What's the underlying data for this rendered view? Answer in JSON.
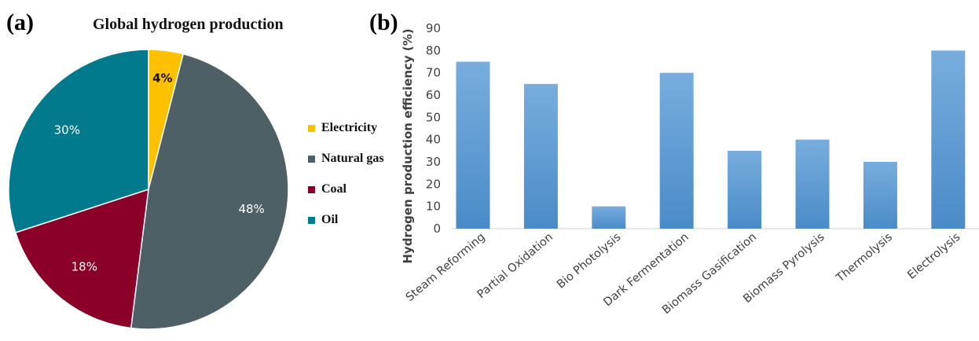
{
  "panel_a_label": "(a)",
  "panel_b_label": "(b)",
  "chart_data": [
    {
      "type": "pie",
      "title": "Global hydrogen production",
      "slices": [
        {
          "name": "Electricity",
          "value": 4,
          "label": "4%",
          "color": "#FFC000"
        },
        {
          "name": "Natural gas",
          "value": 48,
          "label": "48%",
          "color": "#4E6066"
        },
        {
          "name": "Coal",
          "value": 18,
          "label": "18%",
          "color": "#8A0028"
        },
        {
          "name": "Oil",
          "value": 30,
          "label": "30%",
          "color": "#007A8C"
        }
      ],
      "legend_position": "right"
    },
    {
      "type": "bar",
      "title": "",
      "xlabel": "",
      "ylabel": "Hydrogen production efficiency (%)",
      "categories": [
        "Steam Reforming",
        "Partial Oxidation",
        "Bio Photolysis",
        "Dark Fermentation",
        "Biomass Gasification",
        "Biomass Pyrolysis",
        "Thermolysis",
        "Electrolysis"
      ],
      "values": [
        75,
        65,
        10,
        70,
        35,
        40,
        30,
        80
      ],
      "ylim": [
        0,
        90
      ],
      "yticks": [
        "0",
        "10",
        "20",
        "30",
        "40",
        "50",
        "60",
        "70",
        "80",
        "90"
      ],
      "grid": false,
      "bar_color": "#5B9BD5"
    }
  ]
}
